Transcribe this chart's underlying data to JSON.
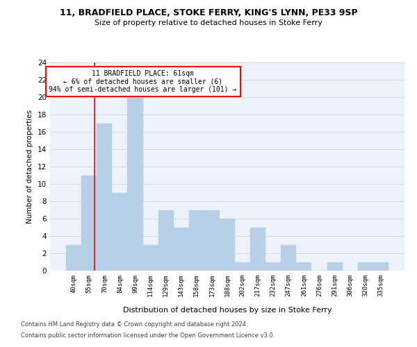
{
  "title1": "11, BRADFIELD PLACE, STOKE FERRY, KING'S LYNN, PE33 9SP",
  "title2": "Size of property relative to detached houses in Stoke Ferry",
  "xlabel": "Distribution of detached houses by size in Stoke Ferry",
  "ylabel": "Number of detached properties",
  "categories": [
    "40sqm",
    "55sqm",
    "70sqm",
    "84sqm",
    "99sqm",
    "114sqm",
    "129sqm",
    "143sqm",
    "158sqm",
    "173sqm",
    "188sqm",
    "202sqm",
    "217sqm",
    "232sqm",
    "247sqm",
    "261sqm",
    "276sqm",
    "291sqm",
    "306sqm",
    "320sqm",
    "335sqm"
  ],
  "values": [
    3,
    11,
    17,
    9,
    20,
    3,
    7,
    5,
    7,
    7,
    6,
    1,
    5,
    1,
    3,
    1,
    0,
    1,
    0,
    1,
    1
  ],
  "bar_color": "#b8cfe8",
  "bar_edge_color": "#b8cfe8",
  "grid_color": "#ccd8ee",
  "background_color": "#eef2fa",
  "red_line_x": 1.35,
  "annotation_line1": "11 BRADFIELD PLACE: 61sqm",
  "annotation_line2": "← 6% of detached houses are smaller (6)",
  "annotation_line3": "94% of semi-detached houses are larger (101) →",
  "annotation_box_color": "white",
  "annotation_box_edge": "red",
  "footer1": "Contains HM Land Registry data © Crown copyright and database right 2024.",
  "footer2": "Contains public sector information licensed under the Open Government Licence v3.0.",
  "ylim": [
    0,
    24
  ],
  "yticks": [
    0,
    2,
    4,
    6,
    8,
    10,
    12,
    14,
    16,
    18,
    20,
    22,
    24
  ]
}
